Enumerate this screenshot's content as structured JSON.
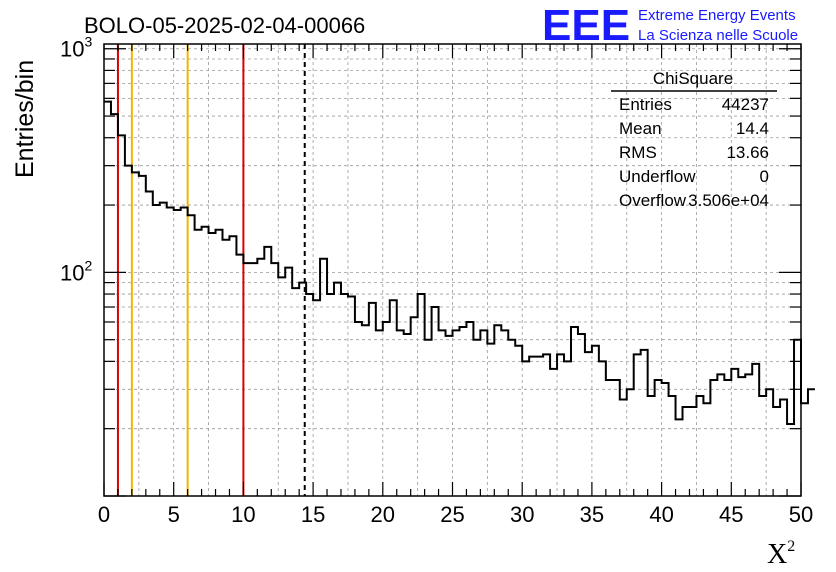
{
  "chart_data": {
    "type": "histogram",
    "title": "BOLO-05-2025-02-04-00066",
    "xlabel": "X",
    "xlabel_sup": "2",
    "ylabel": "Entries/bin",
    "xlim": [
      0,
      50
    ],
    "ylim": [
      10,
      1050
    ],
    "y_scale": "log",
    "grid": true,
    "x_ticks": [
      0,
      5,
      10,
      15,
      20,
      25,
      30,
      35,
      40,
      45,
      50
    ],
    "x_tick_labels": [
      "0",
      "5",
      "10",
      "15",
      "20",
      "25",
      "30",
      "35",
      "40",
      "45",
      "50"
    ],
    "y_tick_labels": [
      {
        "base": "10",
        "exp": "2",
        "value": 100
      },
      {
        "base": "10",
        "exp": "3",
        "value": 1000
      }
    ],
    "bin_width": 0.5,
    "bin_start": 0,
    "counts": [
      580,
      510,
      410,
      300,
      280,
      270,
      230,
      200,
      205,
      195,
      190,
      195,
      180,
      155,
      160,
      150,
      155,
      140,
      145,
      120,
      110,
      110,
      115,
      130,
      110,
      95,
      105,
      85,
      90,
      80,
      75,
      115,
      80,
      90,
      80,
      78,
      60,
      58,
      73,
      55,
      60,
      75,
      55,
      53,
      63,
      80,
      50,
      70,
      55,
      52,
      55,
      57,
      60,
      50,
      55,
      48,
      58,
      55,
      50,
      47,
      40,
      42,
      42,
      43,
      37,
      43,
      40,
      57,
      53,
      44,
      47,
      40,
      33,
      33,
      27,
      30,
      43,
      45,
      28,
      33,
      32,
      28,
      22,
      25,
      25,
      28,
      26,
      33,
      35,
      33,
      37,
      34,
      35,
      39,
      28,
      30,
      25,
      27,
      21,
      50,
      26,
      30
    ],
    "vertical_lines": [
      {
        "x": 1.0,
        "color": "#dd0000",
        "style": "solid"
      },
      {
        "x": 2.0,
        "color": "#f2b600",
        "style": "solid"
      },
      {
        "x": 6.0,
        "color": "#f2b600",
        "style": "solid"
      },
      {
        "x": 10.0,
        "color": "#dd0000",
        "style": "solid"
      },
      {
        "x": 14.4,
        "color": "#000000",
        "style": "dashed"
      }
    ],
    "stats_box": {
      "title": "ChiSquare",
      "rows": [
        {
          "label": "Entries",
          "value": "44237"
        },
        {
          "label": "Mean",
          "value": "14.4"
        },
        {
          "label": "RMS",
          "value": "13.66"
        },
        {
          "label": "Underflow",
          "value": "0"
        },
        {
          "label": "Overflow",
          "value": "3.506e+04"
        }
      ]
    }
  },
  "logo": {
    "text": "EEE",
    "line1": "Extreme Energy Events",
    "line2": "La Scienza nelle Scuole",
    "color": "#1a1aff"
  }
}
